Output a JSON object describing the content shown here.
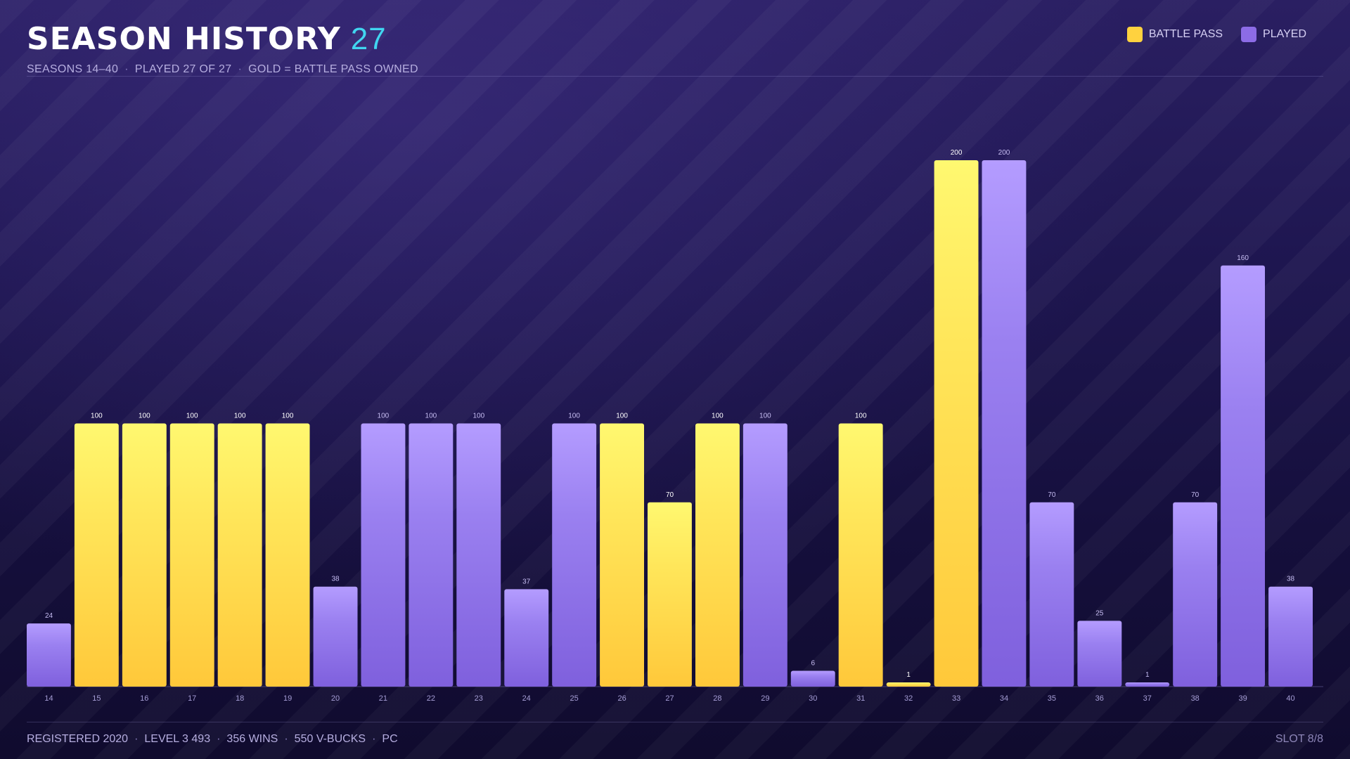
{
  "header": {
    "title": "SEASON HISTORY",
    "count": "27",
    "subtitle_parts": [
      "SEASONS 14–40",
      "PLAYED 27 OF 27",
      "GOLD = BATTLE PASS OWNED"
    ]
  },
  "legend": [
    {
      "label": "BATTLE PASS",
      "color": "#ffd23f"
    },
    {
      "label": "PLAYED",
      "color": "#8c6ce6"
    }
  ],
  "footer": {
    "stats": [
      "REGISTERED 2020",
      "LEVEL 3 493",
      "356 WINS",
      "550 V-BUCKS",
      "PC"
    ],
    "slot": "SLOT 8/8"
  },
  "colors": {
    "battle_pass_top": "#fff870",
    "battle_pass_bottom": "#ffc83a",
    "played_top": "#b49cff",
    "played_bottom": "#7f60dd",
    "accent": "#41d6f0"
  },
  "chart_data": {
    "type": "bar",
    "title": "SEASON HISTORY",
    "categories": [
      "14",
      "15",
      "16",
      "17",
      "18",
      "19",
      "20",
      "21",
      "22",
      "23",
      "24",
      "25",
      "26",
      "27",
      "28",
      "29",
      "30",
      "31",
      "32",
      "33",
      "34",
      "35",
      "36",
      "37",
      "38",
      "39",
      "40"
    ],
    "values": [
      24,
      100,
      100,
      100,
      100,
      100,
      38,
      100,
      100,
      100,
      37,
      100,
      100,
      70,
      100,
      100,
      6,
      100,
      1,
      200,
      200,
      70,
      25,
      1,
      70,
      160,
      38
    ],
    "battle_pass": [
      false,
      true,
      true,
      true,
      true,
      true,
      false,
      false,
      false,
      false,
      false,
      false,
      true,
      true,
      true,
      false,
      false,
      true,
      true,
      true,
      false,
      false,
      false,
      false,
      false,
      false,
      false
    ],
    "series": [
      {
        "name": "BATTLE PASS",
        "color": "#ffd23f"
      },
      {
        "name": "PLAYED",
        "color": "#8c6ce6"
      }
    ],
    "ylim": [
      0,
      200
    ],
    "grid": false,
    "legend_position": "top-right"
  }
}
